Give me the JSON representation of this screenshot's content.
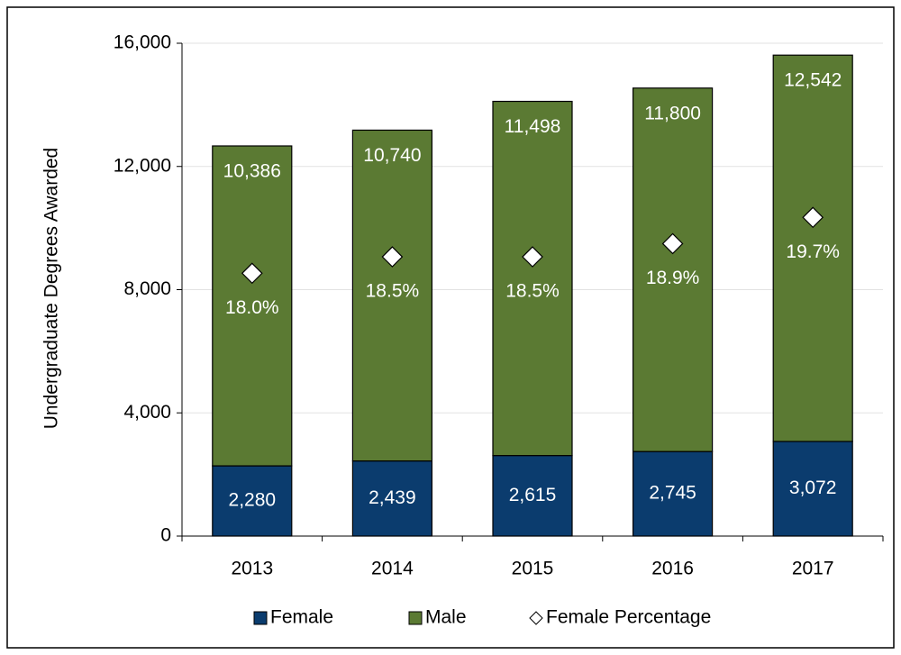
{
  "chart_data": {
    "type": "bar",
    "stacked": true,
    "y_axis_label": "Undergraduate  Degrees  Awarded",
    "categories": [
      "2013",
      "2014",
      "2015",
      "2016",
      "2017"
    ],
    "series": [
      {
        "name": "Female",
        "color": "#0b3c6e",
        "values": [
          2280,
          2439,
          2615,
          2745,
          3072
        ],
        "value_labels": [
          "2,280",
          "2,439",
          "2,615",
          "2,745",
          "3,072"
        ]
      },
      {
        "name": "Male",
        "color": "#5b7a33",
        "values": [
          10386,
          10740,
          11498,
          11800,
          12542
        ],
        "value_labels": [
          "10,386",
          "10,740",
          "11,498",
          "11,800",
          "12,542"
        ]
      },
      {
        "name": "Female Percentage",
        "color": "#ffffff",
        "axis": "y2",
        "marker": "diamond",
        "values": [
          18.0,
          18.5,
          18.5,
          18.9,
          19.7
        ],
        "value_labels": [
          "18.0%",
          "18.5%",
          "18.5%",
          "18.9%",
          "19.7%"
        ]
      }
    ],
    "ylim": [
      0,
      16000
    ],
    "yticks": [
      0,
      {
        "value": 4000,
        "label": "4,000"
      },
      {
        "value": 8000,
        "label": "8,000"
      },
      {
        "value": 12000,
        "label": "12,000"
      },
      {
        "value": 16000,
        "label": "16,000"
      }
    ],
    "y2lim": [
      10,
      25
    ],
    "grid": true,
    "legend": "bottom"
  }
}
